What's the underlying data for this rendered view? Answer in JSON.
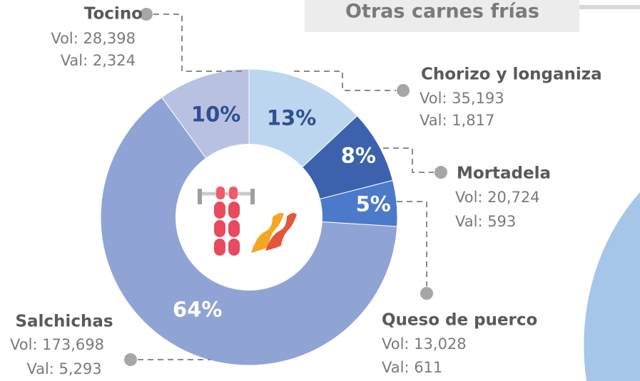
{
  "chart_data": {
    "type": "pie",
    "donut": true,
    "title": "Otras carnes frías",
    "categories": [
      "Chorizo y longaniza",
      "Mortadela",
      "Queso de puerco",
      "Salchichas",
      "Tocino"
    ],
    "values": [
      13,
      8,
      5,
      64,
      10
    ],
    "value_labels": [
      "13%",
      "8%",
      "5%",
      "64%",
      "10%"
    ],
    "colors": [
      "#bcd6ef",
      "#3c62ad",
      "#4c7acb",
      "#8fa4d5",
      "#b9c1e2"
    ],
    "label_colors": [
      "#2f4f8f",
      "#ffffff",
      "#ffffff",
      "#ffffff",
      "#2f4f8f"
    ],
    "details": [
      [
        "Vol: 35,193",
        "Val: 1,817"
      ],
      [
        "Vol: 20,724",
        "Val: 593"
      ],
      [
        "Vol: 13,028",
        "Val: 611"
      ],
      [
        "Vol: 173,698",
        "Val: 5,293"
      ],
      [
        "Vol: 28,398",
        "Val: 2,324"
      ]
    ]
  }
}
